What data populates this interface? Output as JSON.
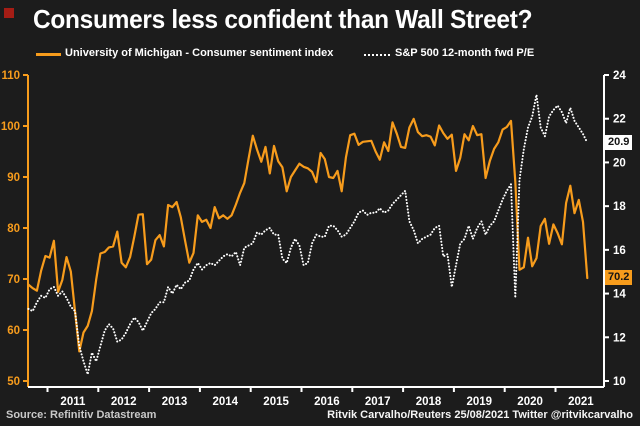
{
  "header": {
    "title": "Consumers less confident than Wall Street?"
  },
  "legend": [
    {
      "label": "University of Michigan - Consumer sentiment index",
      "color": "#F79C1C",
      "style": "solid"
    },
    {
      "label": "S&P 500 12-month fwd P/E",
      "color": "#ffffff",
      "style": "dotted"
    }
  ],
  "footer": {
    "source": "Source: Refinitiv Datastream",
    "credit": "Ritvik Carvalho/Reuters 25/08/2021 Twitter @ritvikcarvalho"
  },
  "colors": {
    "background": "#1c1c1c",
    "orange": "#F79C1C",
    "white": "#ffffff",
    "logo_red": "#a51d15"
  },
  "chart_data": {
    "type": "line",
    "title": "Consumers less confident than Wall Street?",
    "x_start": "2010-08",
    "frequency": "monthly",
    "grid": false,
    "legend_position": "top",
    "x_tick_years": [
      "2011",
      "2012",
      "2013",
      "2014",
      "2015",
      "2016",
      "2017",
      "2018",
      "2019",
      "2020",
      "2021"
    ],
    "left_axis": {
      "name": "University of Michigan - Consumer sentiment index",
      "ticks": [
        110,
        100,
        90,
        80,
        70,
        60,
        50
      ],
      "range": [
        50,
        110
      ],
      "color": "#F79C1C"
    },
    "right_axis": {
      "name": "S&P 500 12-month fwd P/E",
      "ticks": [
        24,
        22,
        20,
        18,
        16,
        14,
        12,
        10
      ],
      "range": [
        10,
        24
      ],
      "color": "#ffffff"
    },
    "series": [
      {
        "name": "University of Michigan - Consumer sentiment index",
        "axis": "left",
        "color": "#F79C1C",
        "style": "solid",
        "end_label": "70.2",
        "values": [
          68.9,
          68.2,
          67.7,
          71.6,
          74.5,
          74.2,
          77.5,
          67.5,
          69.8,
          74.3,
          71.5,
          63.7,
          55.8,
          59.5,
          60.8,
          63.7,
          69.9,
          75.0,
          75.3,
          76.2,
          76.4,
          79.3,
          73.2,
          72.3,
          74.3,
          78.3,
          82.6,
          82.7,
          72.9,
          73.8,
          77.6,
          78.6,
          76.4,
          84.5,
          84.1,
          85.1,
          82.1,
          77.5,
          73.2,
          75.1,
          82.5,
          81.2,
          81.6,
          80.0,
          84.1,
          81.9,
          82.5,
          81.8,
          82.5,
          84.6,
          86.9,
          88.8,
          93.6,
          98.1,
          95.4,
          93.0,
          95.9,
          90.7,
          96.1,
          93.1,
          91.9,
          87.2,
          90.0,
          91.3,
          92.6,
          92.0,
          91.7,
          91.0,
          89.0,
          94.7,
          93.5,
          90.0,
          89.8,
          91.2,
          87.2,
          93.8,
          98.2,
          98.5,
          96.3,
          96.9,
          97.0,
          97.1,
          95.0,
          93.4,
          96.8,
          95.1,
          100.7,
          98.5,
          95.9,
          95.7,
          99.7,
          101.4,
          98.8,
          98.0,
          98.2,
          97.9,
          96.2,
          100.1,
          98.6,
          97.5,
          98.3,
          91.2,
          93.8,
          98.4,
          97.2,
          100.0,
          98.2,
          98.4,
          89.8,
          93.2,
          95.5,
          96.8,
          99.3,
          99.8,
          101.0,
          89.1,
          71.8,
          72.3,
          78.1,
          72.5,
          74.1,
          80.4,
          81.8,
          76.9,
          80.7,
          79.0,
          76.8,
          84.9,
          88.3,
          82.9,
          85.5,
          81.2,
          70.2
        ]
      },
      {
        "name": "S&P 500 12-month fwd P/E",
        "axis": "right",
        "color": "#ffffff",
        "style": "dotted",
        "end_label": "20.9",
        "values": [
          13.3,
          13.2,
          13.6,
          13.9,
          13.8,
          14.2,
          14.3,
          13.9,
          14.1,
          13.8,
          13.4,
          13.2,
          11.6,
          10.9,
          10.3,
          11.3,
          10.9,
          11.6,
          12.3,
          12.6,
          12.4,
          11.8,
          11.9,
          12.2,
          12.6,
          12.9,
          12.7,
          12.3,
          12.7,
          13.1,
          13.3,
          13.6,
          13.6,
          14.3,
          14.0,
          14.4,
          14.2,
          14.5,
          14.6,
          15.1,
          15.4,
          15.1,
          15.3,
          15.4,
          15.3,
          15.5,
          15.7,
          15.8,
          15.7,
          15.9,
          15.3,
          16.1,
          16.2,
          16.3,
          16.8,
          16.7,
          16.9,
          17.0,
          16.7,
          16.7,
          15.6,
          15.4,
          16.1,
          16.5,
          16.2,
          15.3,
          15.4,
          16.3,
          16.7,
          16.6,
          16.6,
          17.1,
          17.1,
          16.9,
          16.6,
          16.7,
          17.0,
          17.3,
          17.7,
          17.8,
          17.6,
          17.7,
          17.7,
          17.9,
          17.7,
          17.8,
          18.1,
          18.3,
          18.5,
          18.7,
          17.3,
          16.9,
          16.3,
          16.5,
          16.6,
          16.7,
          17.0,
          17.1,
          15.7,
          15.8,
          14.3,
          15.3,
          16.3,
          16.5,
          17.1,
          16.5,
          17.0,
          17.3,
          16.7,
          17.1,
          17.3,
          17.8,
          18.3,
          18.7,
          19.0,
          13.8,
          19.2,
          20.6,
          21.6,
          22.1,
          23.1,
          21.6,
          21.2,
          22.1,
          22.4,
          22.6,
          22.3,
          21.8,
          22.5,
          21.9,
          21.6,
          21.3,
          20.9
        ]
      }
    ]
  }
}
